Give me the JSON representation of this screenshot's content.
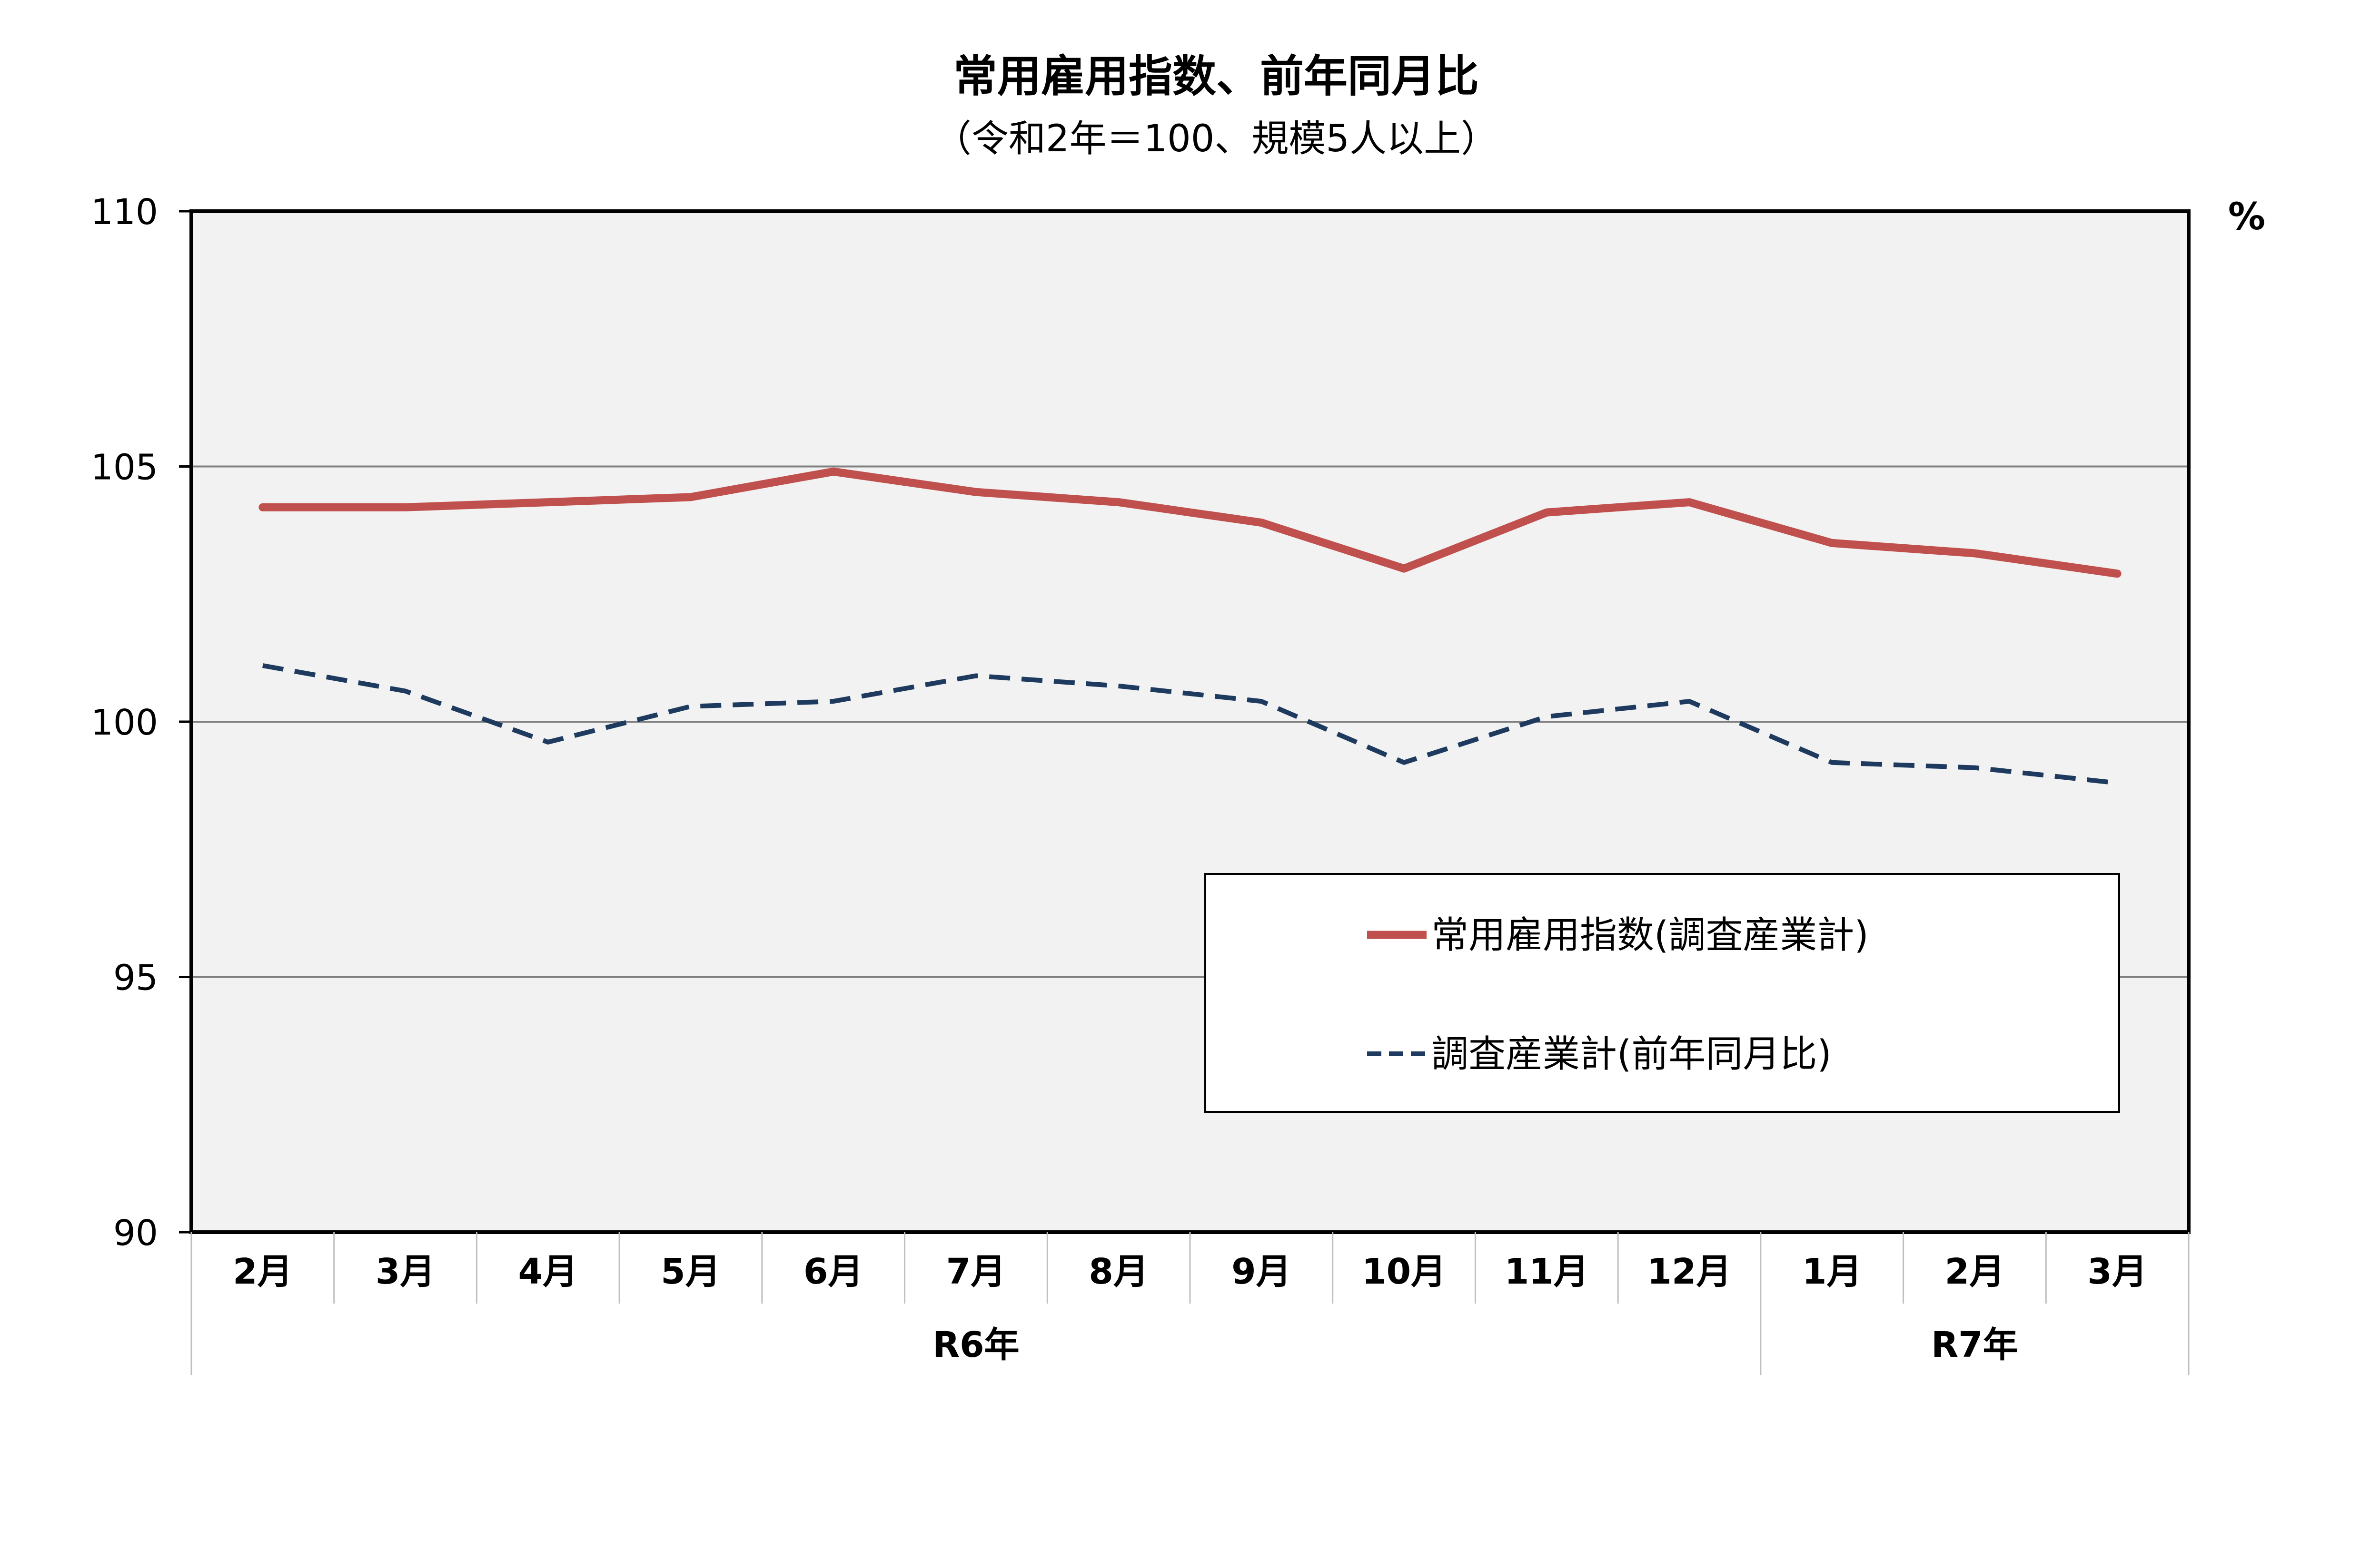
{
  "chart_data": {
    "type": "line",
    "title": "常用雇用指数、前年同月比",
    "subtitle": "（令和2年＝100、規模5人以上）",
    "unit_label": "%",
    "ylim": [
      90,
      110
    ],
    "ytick_step": 5,
    "grid": true,
    "legend_position": "lower-right",
    "categories": [
      "2月",
      "3月",
      "4月",
      "5月",
      "6月",
      "7月",
      "8月",
      "9月",
      "10月",
      "11月",
      "12月",
      "1月",
      "2月",
      "3月"
    ],
    "year_groups": [
      {
        "label": "R6年",
        "start": 0,
        "end": 10
      },
      {
        "label": "R7年",
        "start": 11,
        "end": 13
      }
    ],
    "series": [
      {
        "name": "常用雇用指数(調査産業計)",
        "color": "#C0504D",
        "style": "solid",
        "values": [
          104.2,
          104.2,
          104.3,
          104.4,
          104.9,
          104.5,
          104.3,
          103.9,
          103.0,
          104.1,
          104.3,
          103.5,
          103.3,
          102.9
        ]
      },
      {
        "name": "調査産業計(前年同月比)",
        "color": "#1F3A5F",
        "style": "dashed",
        "values": [
          101.1,
          100.6,
          99.6,
          100.3,
          100.4,
          100.9,
          100.7,
          100.4,
          99.2,
          100.1,
          100.4,
          99.2,
          99.1,
          98.8
        ]
      }
    ]
  },
  "colors": {
    "plot_background": "#F2F2F2",
    "gridline": "#808080",
    "axis": "#000000"
  }
}
